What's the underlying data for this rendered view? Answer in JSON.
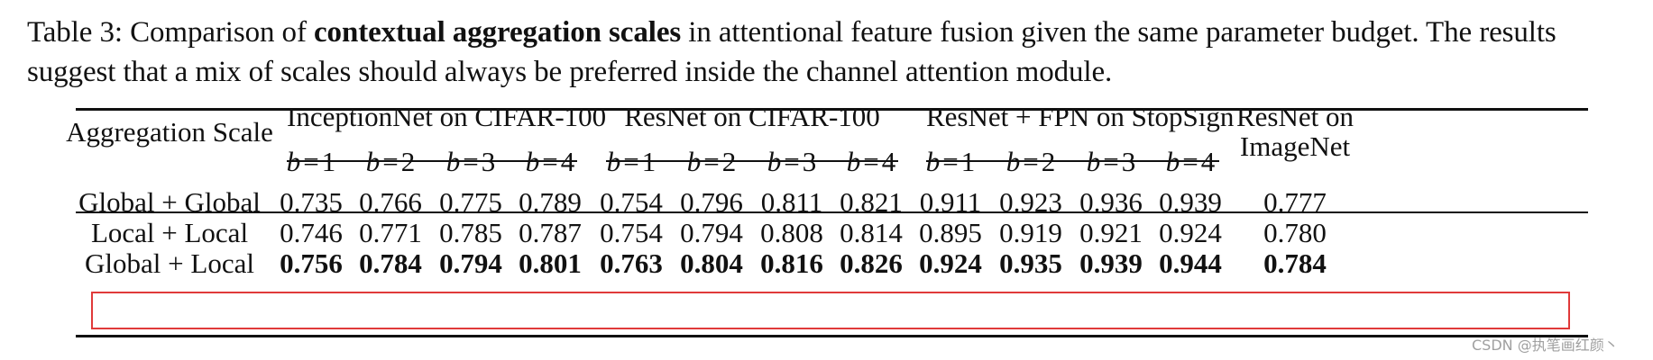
{
  "caption": {
    "prefix": "Table 3: Comparison of ",
    "bold": "contextual aggregation scales",
    "suffix": " in attentional feature fusion given the same parameter budget. The results suggest that a mix of scales should always be preferred inside the channel attention module."
  },
  "table": {
    "row_header": "Aggregation Scale",
    "groups": [
      {
        "name": "InceptionNet on CIFAR-100",
        "b_labels": [
          "1",
          "2",
          "3",
          "4"
        ]
      },
      {
        "name": "ResNet on CIFAR-100",
        "b_labels": [
          "1",
          "2",
          "3",
          "4"
        ]
      },
      {
        "name": "ResNet + FPN on StopSign",
        "b_labels": [
          "1",
          "2",
          "3",
          "4"
        ]
      }
    ],
    "last_column": {
      "line1": "ResNet on",
      "line2": "ImageNet"
    },
    "b_symbol": "b",
    "eq_symbol": "=",
    "rows": [
      {
        "label": "Global + Global",
        "values": [
          "0.735",
          "0.766",
          "0.775",
          "0.789",
          "0.754",
          "0.796",
          "0.811",
          "0.821",
          "0.911",
          "0.923",
          "0.936",
          "0.939",
          "0.777"
        ],
        "bold": false
      },
      {
        "label": "Local + Local",
        "values": [
          "0.746",
          "0.771",
          "0.785",
          "0.787",
          "0.754",
          "0.794",
          "0.808",
          "0.814",
          "0.895",
          "0.919",
          "0.921",
          "0.924",
          "0.780"
        ],
        "bold": false
      },
      {
        "label": "Global + Local",
        "values": [
          "0.756",
          "0.784",
          "0.794",
          "0.801",
          "0.763",
          "0.804",
          "0.816",
          "0.826",
          "0.924",
          "0.935",
          "0.939",
          "0.944",
          "0.784"
        ],
        "bold": true
      }
    ]
  },
  "watermark": "CSDN @执笔画红颜丶"
}
